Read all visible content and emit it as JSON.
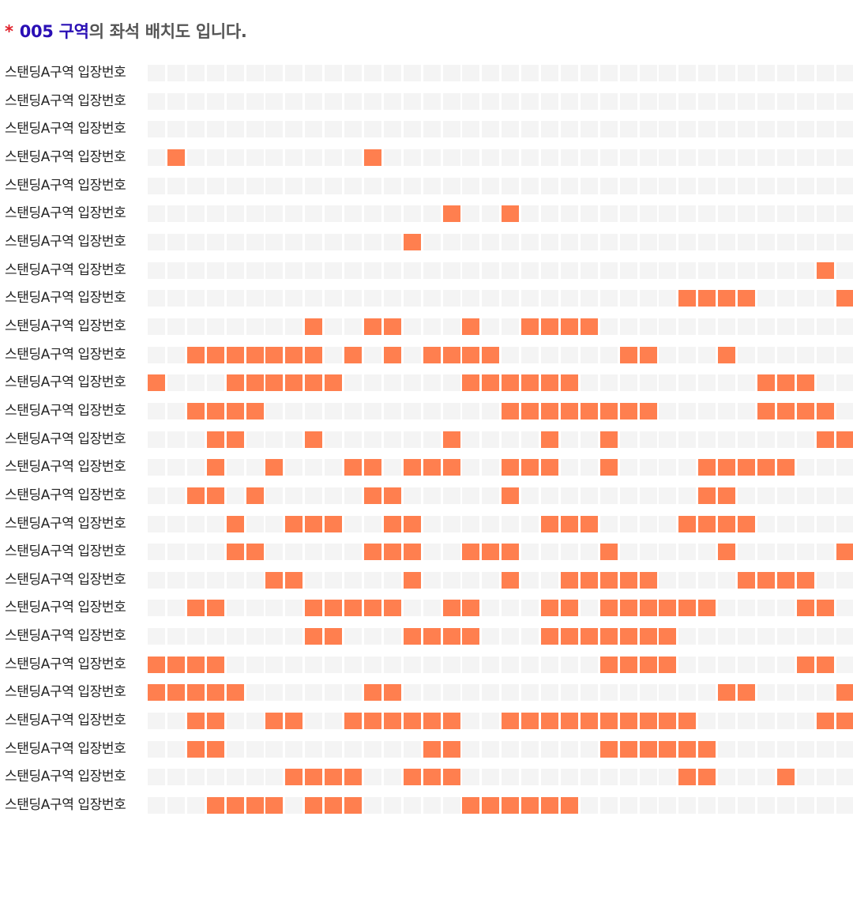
{
  "header": {
    "star": "*",
    "area_code": "005 구역",
    "rest": "의 좌석 배치도 입니다."
  },
  "colors": {
    "occupied": "#ff7f4f",
    "available": "#f4f4f4"
  },
  "seat_map": {
    "columns": 36,
    "rows": [
      {
        "label": "스탠딩A구역 입장번호",
        "occupied": []
      },
      {
        "label": "스탠딩A구역 입장번호",
        "occupied": []
      },
      {
        "label": "스탠딩A구역 입장번호",
        "occupied": []
      },
      {
        "label": "스탠딩A구역 입장번호",
        "occupied": [
          1,
          11
        ]
      },
      {
        "label": "스탠딩A구역 입장번호",
        "occupied": []
      },
      {
        "label": "스탠딩A구역 입장번호",
        "occupied": [
          15,
          18
        ]
      },
      {
        "label": "스탠딩A구역 입장번호",
        "occupied": [
          13
        ]
      },
      {
        "label": "스탠딩A구역 입장번호",
        "occupied": [
          34
        ]
      },
      {
        "label": "스탠딩A구역 입장번호",
        "occupied": [
          27,
          28,
          29,
          30,
          35
        ]
      },
      {
        "label": "스탠딩A구역 입장번호",
        "occupied": [
          8,
          11,
          12,
          16,
          19,
          20,
          21,
          22
        ]
      },
      {
        "label": "스탠딩A구역 입장번호",
        "occupied": [
          2,
          3,
          4,
          5,
          6,
          7,
          8,
          10,
          12,
          14,
          15,
          16,
          17,
          24,
          25,
          29
        ]
      },
      {
        "label": "스탠딩A구역 입장번호",
        "occupied": [
          0,
          4,
          5,
          6,
          7,
          8,
          9,
          16,
          17,
          18,
          19,
          20,
          21,
          31,
          32,
          33
        ]
      },
      {
        "label": "스탠딩A구역 입장번호",
        "occupied": [
          2,
          3,
          4,
          5,
          18,
          19,
          20,
          21,
          22,
          23,
          24,
          25,
          31,
          32,
          33,
          34
        ]
      },
      {
        "label": "스탠딩A구역 입장번호",
        "occupied": [
          3,
          4,
          8,
          15,
          20,
          23,
          34,
          35
        ]
      },
      {
        "label": "스탠딩A구역 입장번호",
        "occupied": [
          3,
          6,
          10,
          11,
          13,
          14,
          15,
          18,
          19,
          20,
          23,
          28,
          29,
          30,
          31,
          32
        ]
      },
      {
        "label": "스탠딩A구역 입장번호",
        "occupied": [
          2,
          3,
          5,
          11,
          12,
          18,
          28,
          29
        ]
      },
      {
        "label": "스탠딩A구역 입장번호",
        "occupied": [
          4,
          7,
          8,
          9,
          12,
          13,
          20,
          21,
          22,
          27,
          28,
          29,
          30
        ]
      },
      {
        "label": "스탠딩A구역 입장번호",
        "occupied": [
          4,
          5,
          11,
          12,
          13,
          16,
          17,
          18,
          23,
          29,
          35
        ]
      },
      {
        "label": "스탠딩A구역 입장번호",
        "occupied": [
          6,
          7,
          13,
          18,
          21,
          22,
          23,
          24,
          25,
          30,
          31,
          32,
          33
        ]
      },
      {
        "label": "스탠딩A구역 입장번호",
        "occupied": [
          2,
          3,
          8,
          9,
          10,
          11,
          12,
          15,
          16,
          20,
          21,
          23,
          24,
          25,
          26,
          27,
          28,
          33,
          34
        ]
      },
      {
        "label": "스탠딩A구역 입장번호",
        "occupied": [
          8,
          9,
          13,
          14,
          15,
          16,
          20,
          21,
          22,
          23,
          24,
          25,
          26
        ]
      },
      {
        "label": "스탠딩A구역 입장번호",
        "occupied": [
          0,
          1,
          2,
          3,
          23,
          24,
          25,
          26,
          33,
          34
        ]
      },
      {
        "label": "스탠딩A구역 입장번호",
        "occupied": [
          0,
          1,
          2,
          3,
          4,
          11,
          12,
          29,
          30,
          35
        ]
      },
      {
        "label": "스탠딩A구역 입장번호",
        "occupied": [
          2,
          3,
          6,
          7,
          10,
          11,
          12,
          13,
          14,
          15,
          18,
          19,
          20,
          21,
          22,
          23,
          24,
          25,
          26,
          27,
          34,
          35
        ]
      },
      {
        "label": "스탠딩A구역 입장번호",
        "occupied": [
          2,
          3,
          14,
          15,
          23,
          24,
          25,
          26,
          27,
          28
        ]
      },
      {
        "label": "스탠딩A구역 입장번호",
        "occupied": [
          7,
          8,
          9,
          10,
          13,
          14,
          15,
          27,
          28,
          32
        ]
      },
      {
        "label": "스탠딩A구역 입장번호",
        "occupied": [
          3,
          4,
          5,
          6,
          8,
          9,
          10,
          16,
          17,
          18,
          19,
          20,
          21
        ]
      }
    ]
  }
}
